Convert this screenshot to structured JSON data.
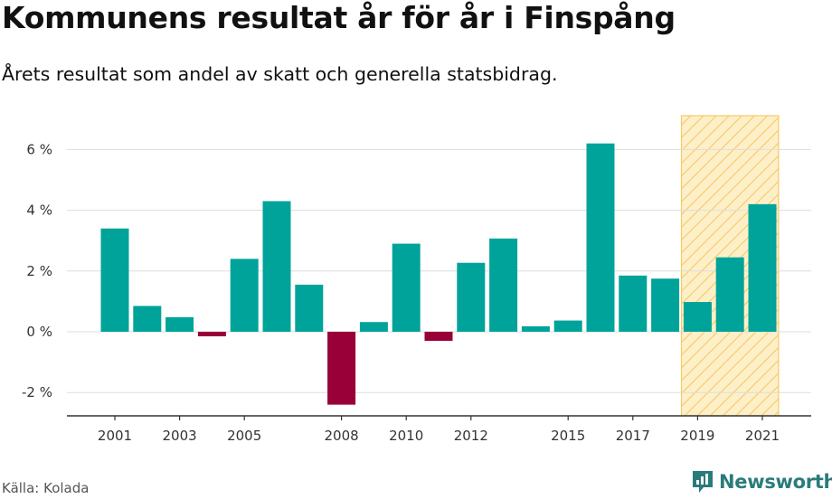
{
  "header": {
    "title": "Kommunens resultat år för år i Finspång",
    "subtitle": "Årets resultat som andel av skatt och generella statsbidrag."
  },
  "footer": {
    "source": "Källa: Kolada",
    "brand": "Newsworthy"
  },
  "colors": {
    "positive": "#00a39a",
    "negative": "#990038",
    "highlight_fill": "#fdf0c8",
    "highlight_stroke": "#f7c867",
    "grid": "#dddddd",
    "axis": "#333333",
    "brand": "#2b7b7b"
  },
  "chart_data": {
    "type": "bar",
    "title": "Kommunens resultat år för år i Finspång",
    "subtitle": "Årets resultat som andel av skatt och generella statsbidrag.",
    "xlabel": "",
    "ylabel": "",
    "unit": "%",
    "ylim": [
      -2.8,
      7
    ],
    "yticks": [
      -2,
      0,
      2,
      4,
      6
    ],
    "ytick_labels": [
      "-2 %",
      "0 %",
      "2 %",
      "4 %",
      "6 %"
    ],
    "categories": [
      "2001",
      "2002",
      "2003",
      "2004",
      "2005",
      "2006",
      "2007",
      "2008",
      "2009",
      "2010",
      "2011",
      "2012",
      "2013",
      "2014",
      "2015",
      "2016",
      "2017",
      "2018",
      "2019",
      "2020",
      "2021"
    ],
    "xtick_labels": [
      "2001",
      "2003",
      "2005",
      "2008",
      "2010",
      "2012",
      "2015",
      "2017",
      "2019",
      "2021"
    ],
    "values": [
      3.4,
      0.85,
      0.48,
      -0.15,
      2.4,
      4.3,
      1.55,
      -2.4,
      0.32,
      2.9,
      -0.3,
      2.27,
      3.07,
      0.18,
      0.37,
      6.2,
      1.85,
      1.75,
      0.98,
      2.45,
      4.2
    ],
    "highlight_range": [
      "2019",
      "2021"
    ],
    "grid": true
  }
}
